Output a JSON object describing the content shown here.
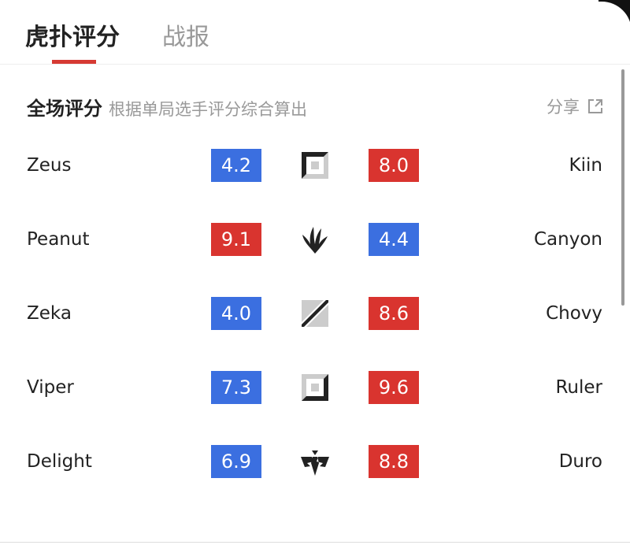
{
  "tabs": [
    {
      "label": "虎扑评分",
      "active": true
    },
    {
      "label": "战报",
      "active": false
    }
  ],
  "section": {
    "title": "全场评分",
    "subtitle": "根据单局选手评分综合算出",
    "share_label": "分享"
  },
  "colors": {
    "accent": "#d63a33",
    "low_score": "#3b6fe0",
    "high_score": "#d9342f"
  },
  "rows": [
    {
      "left_player": "Zeus",
      "left_score": "4.2",
      "left_color": "blue",
      "role_icon": "top-lane-icon",
      "right_score": "8.0",
      "right_color": "red",
      "right_player": "Kiin"
    },
    {
      "left_player": "Peanut",
      "left_score": "9.1",
      "left_color": "red",
      "role_icon": "jungle-icon",
      "right_score": "4.4",
      "right_color": "blue",
      "right_player": "Canyon"
    },
    {
      "left_player": "Zeka",
      "left_score": "4.0",
      "left_color": "blue",
      "role_icon": "mid-lane-icon",
      "right_score": "8.6",
      "right_color": "red",
      "right_player": "Chovy"
    },
    {
      "left_player": "Viper",
      "left_score": "7.3",
      "left_color": "blue",
      "role_icon": "bot-lane-icon",
      "right_score": "9.6",
      "right_color": "red",
      "right_player": "Ruler"
    },
    {
      "left_player": "Delight",
      "left_score": "6.9",
      "left_color": "blue",
      "role_icon": "support-icon",
      "right_score": "8.8",
      "right_color": "red",
      "right_player": "Duro"
    }
  ]
}
